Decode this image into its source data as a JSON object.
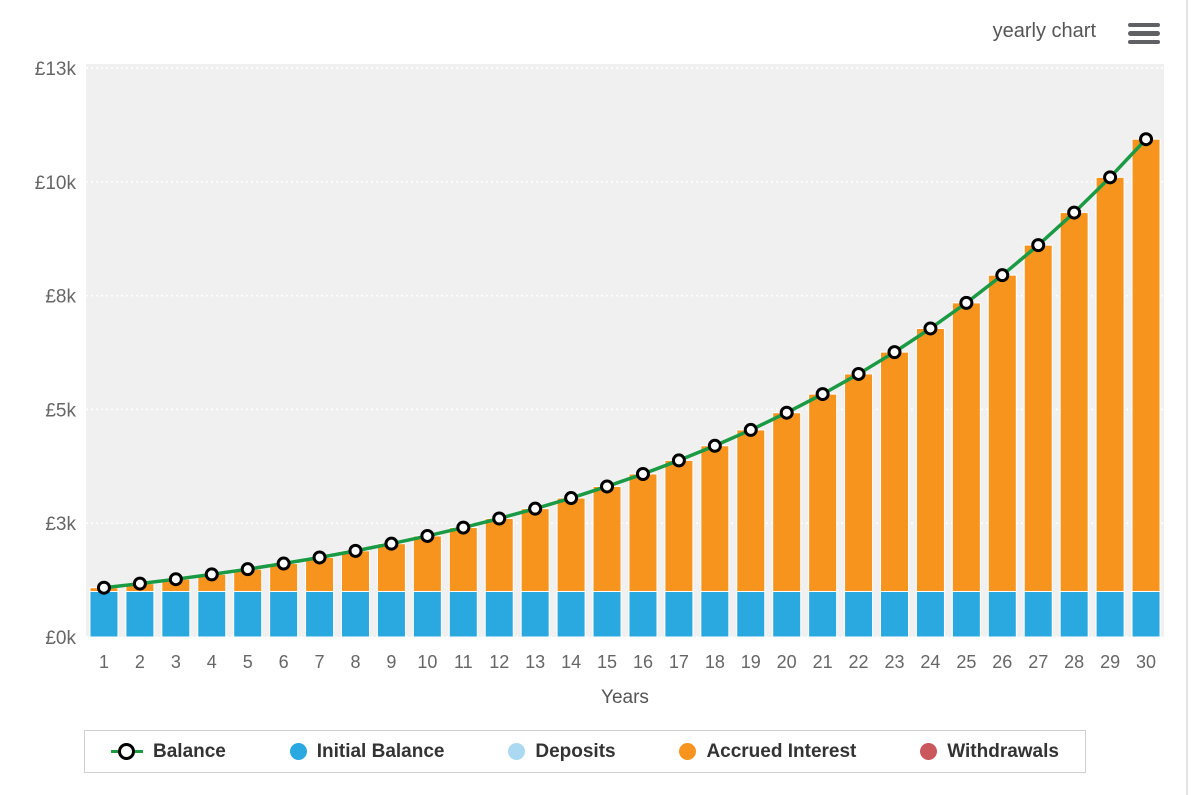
{
  "header": {
    "chart_mode_label": "yearly chart",
    "menu_icon": "hamburger-icon"
  },
  "chart_data": {
    "type": "bar",
    "subtype": "stacked-columns-with-line-overlay",
    "title": "",
    "xlabel": "Years",
    "ylabel": "",
    "currency": "£",
    "grid": true,
    "legend_position": "bottom",
    "plot_background": "#f0f0f0",
    "x": [
      1,
      2,
      3,
      4,
      5,
      6,
      7,
      8,
      9,
      10,
      11,
      12,
      13,
      14,
      15,
      16,
      17,
      18,
      19,
      20,
      21,
      22,
      23,
      24,
      25,
      26,
      27,
      28,
      29,
      30
    ],
    "ylim": [
      0,
      12500
    ],
    "yticks": [
      {
        "value": 0,
        "label": "£0k"
      },
      {
        "value": 2500,
        "label": "£3k"
      },
      {
        "value": 5000,
        "label": "£5k"
      },
      {
        "value": 7500,
        "label": "£8k"
      },
      {
        "value": 10000,
        "label": "£10k"
      },
      {
        "value": 12500,
        "label": "£13k"
      }
    ],
    "series": [
      {
        "name": "Balance",
        "type": "line",
        "color": "#1b9a44",
        "marker": {
          "fill": "#ffffff",
          "stroke": "#000000"
        },
        "values": [
          1083,
          1173,
          1270,
          1376,
          1490,
          1614,
          1747,
          1892,
          2050,
          2220,
          2404,
          2603,
          2819,
          3053,
          3307,
          3581,
          3879,
          4201,
          4549,
          4927,
          5336,
          5779,
          6258,
          6778,
          7340,
          7949,
          8609,
          9324,
          10098,
          10936
        ]
      },
      {
        "name": "Initial Balance",
        "type": "column",
        "color": "#29a9e0",
        "values": [
          1000,
          1000,
          1000,
          1000,
          1000,
          1000,
          1000,
          1000,
          1000,
          1000,
          1000,
          1000,
          1000,
          1000,
          1000,
          1000,
          1000,
          1000,
          1000,
          1000,
          1000,
          1000,
          1000,
          1000,
          1000,
          1000,
          1000,
          1000,
          1000,
          1000
        ]
      },
      {
        "name": "Deposits",
        "type": "column",
        "color": "#abd9f2",
        "values": [
          0,
          0,
          0,
          0,
          0,
          0,
          0,
          0,
          0,
          0,
          0,
          0,
          0,
          0,
          0,
          0,
          0,
          0,
          0,
          0,
          0,
          0,
          0,
          0,
          0,
          0,
          0,
          0,
          0,
          0
        ]
      },
      {
        "name": "Accrued Interest",
        "type": "column",
        "color": "#f7941e",
        "values": [
          83,
          173,
          270,
          376,
          490,
          614,
          747,
          892,
          1050,
          1220,
          1404,
          1603,
          1819,
          2053,
          2307,
          2581,
          2879,
          3201,
          3549,
          3927,
          4336,
          4779,
          5258,
          5778,
          6340,
          6949,
          7609,
          8324,
          9098,
          9936
        ]
      },
      {
        "name": "Withdrawals",
        "type": "column",
        "color": "#c9575c",
        "values": [
          0,
          0,
          0,
          0,
          0,
          0,
          0,
          0,
          0,
          0,
          0,
          0,
          0,
          0,
          0,
          0,
          0,
          0,
          0,
          0,
          0,
          0,
          0,
          0,
          0,
          0,
          0,
          0,
          0,
          0
        ]
      }
    ]
  }
}
